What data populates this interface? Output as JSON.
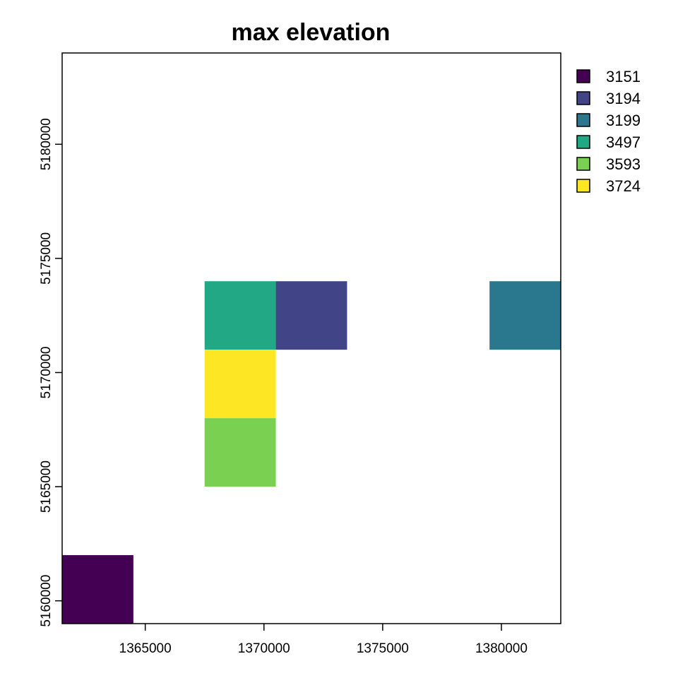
{
  "chart_data": {
    "type": "heatmap",
    "title": "max elevation",
    "xlabel": "",
    "ylabel": "",
    "xlim": [
      1361500,
      1382500
    ],
    "ylim": [
      5159000,
      5184000
    ],
    "x_ticks": [
      1365000,
      1370000,
      1375000,
      1380000
    ],
    "y_ticks": [
      5160000,
      5165000,
      5170000,
      5175000,
      5180000
    ],
    "grid": false,
    "legend_position": "right",
    "cells": [
      {
        "x": [
          1361500,
          1364500
        ],
        "y": [
          5159000,
          5162000
        ],
        "value": 3151
      },
      {
        "x": [
          1367500,
          1370500
        ],
        "y": [
          5171000,
          5174000
        ],
        "value": 3497
      },
      {
        "x": [
          1370500,
          1373500
        ],
        "y": [
          5171000,
          5174000
        ],
        "value": 3194
      },
      {
        "x": [
          1379500,
          1382500
        ],
        "y": [
          5171000,
          5174000
        ],
        "value": 3199
      },
      {
        "x": [
          1367500,
          1370500
        ],
        "y": [
          5168000,
          5171000
        ],
        "value": 3724
      },
      {
        "x": [
          1367500,
          1370500
        ],
        "y": [
          5165000,
          5168000
        ],
        "value": 3593
      }
    ],
    "legend": [
      {
        "label": "3151",
        "color": "#440154"
      },
      {
        "label": "3194",
        "color": "#414487"
      },
      {
        "label": "3199",
        "color": "#2a788e"
      },
      {
        "label": "3497",
        "color": "#22a884"
      },
      {
        "label": "3593",
        "color": "#7ad151"
      },
      {
        "label": "3724",
        "color": "#fde725"
      }
    ]
  }
}
